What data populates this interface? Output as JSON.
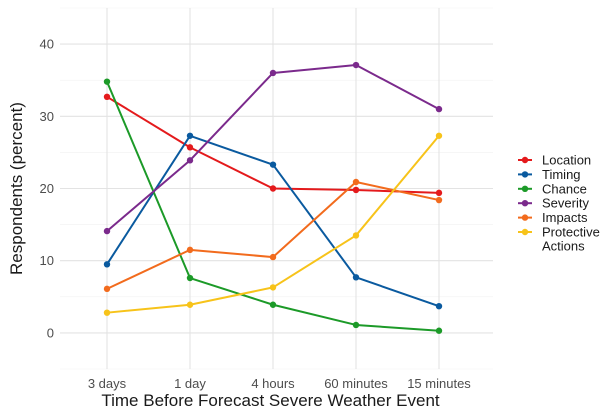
{
  "chart_data": {
    "type": "line",
    "title": "",
    "xlabel": "Time Before Forecast Severe Weather Event",
    "ylabel": "Respondents (percent)",
    "categories": [
      "3 days",
      "1 day",
      "4 hours",
      "60 minutes",
      "15 minutes"
    ],
    "ylim": [
      -5,
      45
    ],
    "yticks": [
      0,
      10,
      20,
      30,
      40
    ],
    "grid": true,
    "legend_position": "right",
    "series": [
      {
        "name": "Location",
        "color": "#e41a1c",
        "values": [
          32.7,
          25.7,
          20.0,
          19.8,
          19.4
        ]
      },
      {
        "name": "Timing",
        "color": "#0a5a9f",
        "values": [
          9.5,
          27.3,
          23.3,
          7.7,
          3.7
        ]
      },
      {
        "name": "Chance",
        "color": "#1c9a28",
        "values": [
          34.8,
          7.6,
          3.9,
          1.1,
          0.3
        ]
      },
      {
        "name": "Severity",
        "color": "#7b2a8c",
        "values": [
          14.1,
          23.9,
          36.0,
          37.1,
          31.0
        ]
      },
      {
        "name": "Impacts",
        "color": "#f26b1d",
        "values": [
          6.1,
          11.5,
          10.5,
          20.9,
          18.4
        ]
      },
      {
        "name": "Protective Actions",
        "label_lines": [
          "Protective",
          "Actions"
        ],
        "color": "#f7c31a",
        "values": [
          2.8,
          3.9,
          6.3,
          13.5,
          27.3
        ]
      }
    ]
  }
}
